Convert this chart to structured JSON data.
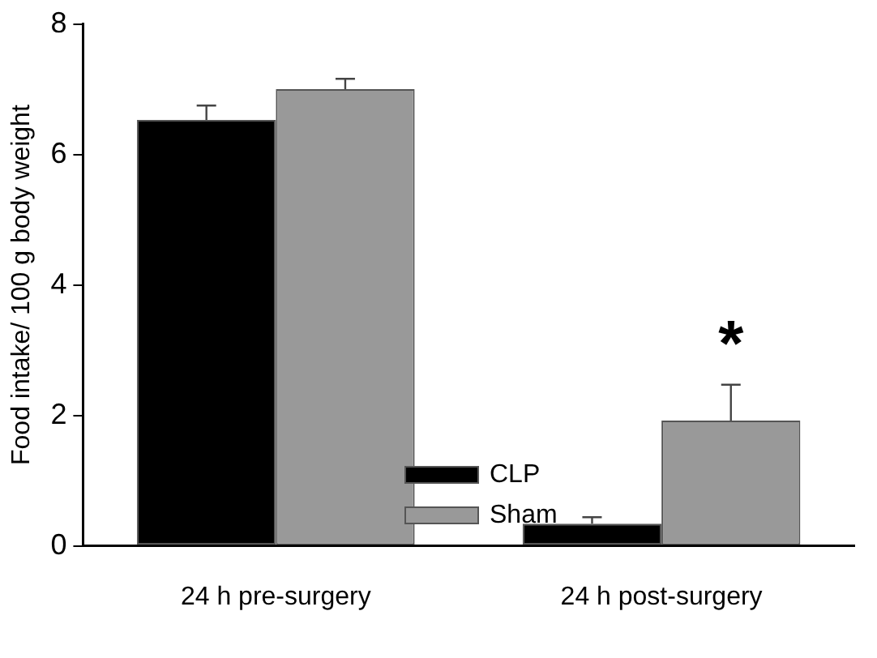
{
  "chart_data": {
    "type": "bar",
    "ylabel": "Food intake/ 100 g body weight",
    "categories": [
      "24 h pre-surgery",
      "24 h post-surgery"
    ],
    "series": [
      {
        "name": "CLP",
        "color": "#000000",
        "values": [
          6.53,
          0.34
        ],
        "errors": [
          [
            6.53,
            6.75
          ],
          [
            0.34,
            0.44
          ]
        ]
      },
      {
        "name": "Sham",
        "color": "#999999",
        "values": [
          7.0,
          1.92
        ],
        "errors": [
          [
            7.0,
            7.16
          ],
          [
            1.92,
            2.47
          ]
        ]
      }
    ],
    "ylim": [
      0,
      8
    ],
    "yticks": [
      0,
      2,
      4,
      6,
      8
    ],
    "grid": false,
    "legend": "bottom",
    "annotations": [
      "*"
    ]
  }
}
